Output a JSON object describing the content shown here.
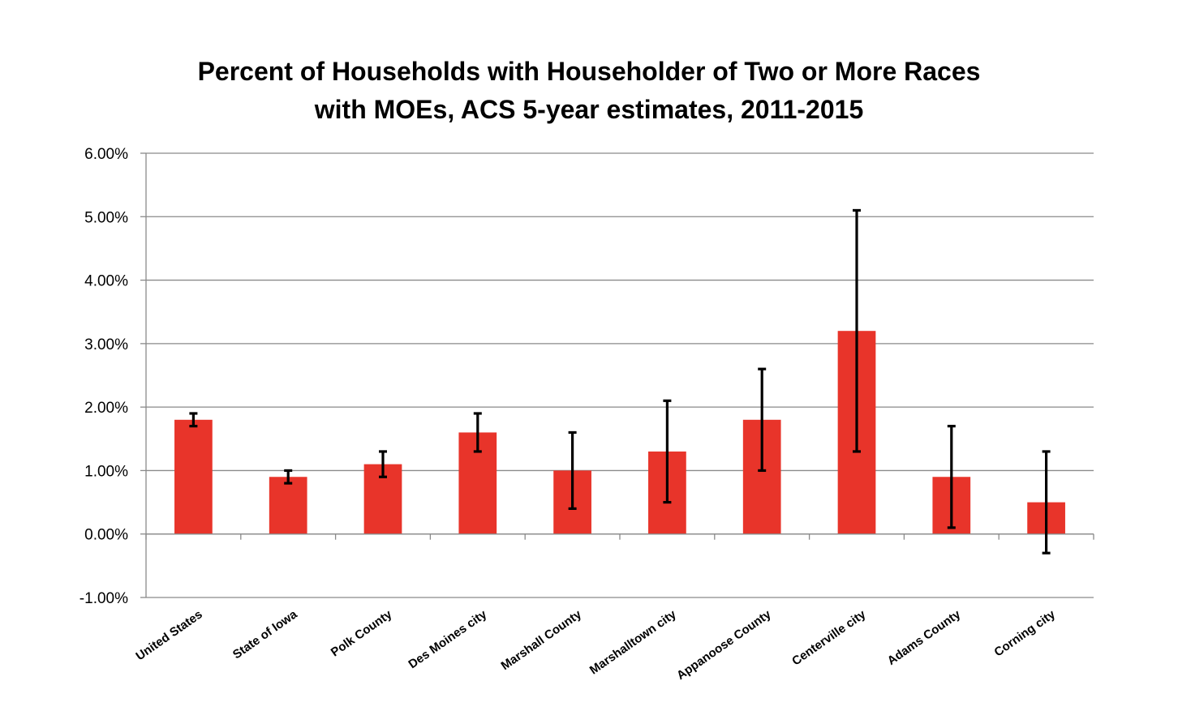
{
  "chart_data": {
    "type": "bar",
    "title_lines": [
      "Percent of Households with Householder of Two or More Races",
      "with MOEs, ACS 5-year estimates, 2011-2015"
    ],
    "xlabel": "",
    "ylabel": "",
    "ylim": [
      -1.0,
      6.0
    ],
    "yticks": [
      -1.0,
      0.0,
      1.0,
      2.0,
      3.0,
      4.0,
      5.0,
      6.0
    ],
    "ytick_labels": [
      "-1.00%",
      "0.00%",
      "1.00%",
      "2.00%",
      "3.00%",
      "4.00%",
      "5.00%",
      "6.00%"
    ],
    "grid": true,
    "legend": "none",
    "categories": [
      "United States",
      "State of Iowa",
      "Polk County",
      "Des Moines city",
      "Marshall County",
      "Marshalltown city",
      "Appanoose County",
      "Centerville city",
      "Adams County",
      "Corning city"
    ],
    "values": [
      1.8,
      0.9,
      1.1,
      1.6,
      1.0,
      1.3,
      1.8,
      3.2,
      0.9,
      0.5
    ],
    "moe": [
      0.1,
      0.1,
      0.2,
      0.3,
      0.6,
      0.8,
      0.8,
      1.9,
      0.8,
      0.8
    ],
    "bar_color": "#e8342a",
    "error_bar_color": "#000000"
  }
}
